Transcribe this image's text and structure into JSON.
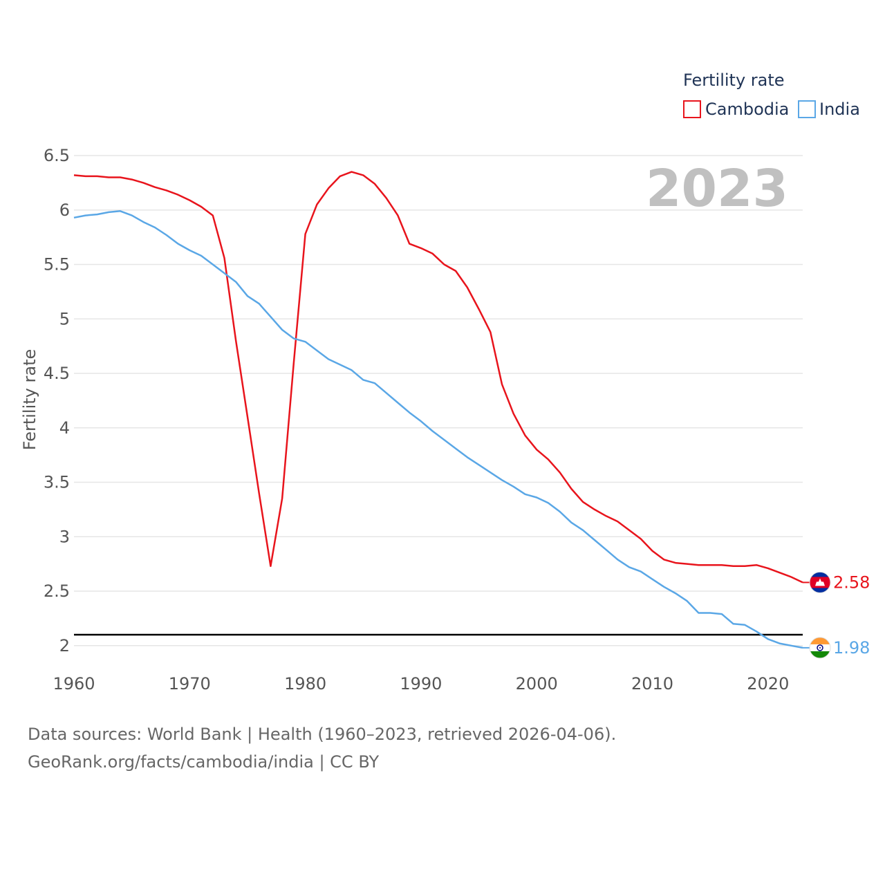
{
  "chart_data": {
    "type": "line",
    "title": "Fertility rate",
    "xlabel": "",
    "ylabel": "Fertility rate",
    "xlim": [
      1960,
      2023
    ],
    "ylim": [
      1.7,
      6.5
    ],
    "xticks": [
      1960,
      1970,
      1980,
      1990,
      2000,
      2010,
      2020
    ],
    "xtick_labels": [
      "1960",
      "1970",
      "1980",
      "1990",
      "2000",
      "2010",
      "2020"
    ],
    "yticks": [
      2,
      2.5,
      3,
      3.5,
      4,
      4.5,
      5,
      5.5,
      6,
      6.5
    ],
    "ytick_labels": [
      "2",
      "2.5",
      "3",
      "3.5",
      "4",
      "4.5",
      "5",
      "5.5",
      "6",
      "6.5"
    ],
    "year_label": "2023",
    "reference_line": {
      "y": 2.1,
      "color": "#000000"
    },
    "x": [
      1960,
      1961,
      1962,
      1963,
      1964,
      1965,
      1966,
      1967,
      1968,
      1969,
      1970,
      1971,
      1972,
      1973,
      1974,
      1975,
      1976,
      1977,
      1978,
      1979,
      1980,
      1981,
      1982,
      1983,
      1984,
      1985,
      1986,
      1987,
      1988,
      1989,
      1990,
      1991,
      1992,
      1993,
      1994,
      1995,
      1996,
      1997,
      1998,
      1999,
      2000,
      2001,
      2002,
      2003,
      2004,
      2005,
      2006,
      2007,
      2008,
      2009,
      2010,
      2011,
      2012,
      2013,
      2014,
      2015,
      2016,
      2017,
      2018,
      2019,
      2020,
      2021,
      2022,
      2023
    ],
    "series": [
      {
        "name": "Cambodia",
        "color": "#e8141c",
        "end_label": "2.58",
        "values": [
          6.32,
          6.31,
          6.31,
          6.3,
          6.3,
          6.28,
          6.25,
          6.21,
          6.18,
          6.14,
          6.09,
          6.03,
          5.95,
          5.56,
          4.8,
          4.1,
          3.4,
          2.73,
          3.35,
          4.6,
          5.78,
          6.05,
          6.2,
          6.31,
          6.35,
          6.32,
          6.24,
          6.11,
          5.95,
          5.69,
          5.65,
          5.6,
          5.5,
          5.44,
          5.29,
          5.09,
          4.88,
          4.4,
          4.13,
          3.93,
          3.8,
          3.71,
          3.59,
          3.44,
          3.32,
          3.25,
          3.19,
          3.14,
          3.06,
          2.98,
          2.87,
          2.79,
          2.76,
          2.75,
          2.74,
          2.74,
          2.74,
          2.73,
          2.73,
          2.74,
          2.71,
          2.67,
          2.63,
          2.58
        ]
      },
      {
        "name": "India",
        "color": "#5aa7e6",
        "end_label": "1.98",
        "values": [
          5.93,
          5.95,
          5.96,
          5.98,
          5.99,
          5.95,
          5.89,
          5.84,
          5.77,
          5.69,
          5.63,
          5.58,
          5.5,
          5.42,
          5.34,
          5.21,
          5.14,
          5.02,
          4.9,
          4.82,
          4.79,
          4.71,
          4.63,
          4.58,
          4.53,
          4.44,
          4.41,
          4.32,
          4.23,
          4.14,
          4.06,
          3.97,
          3.89,
          3.81,
          3.73,
          3.66,
          3.59,
          3.52,
          3.46,
          3.39,
          3.36,
          3.31,
          3.23,
          3.13,
          3.06,
          2.97,
          2.88,
          2.79,
          2.72,
          2.68,
          2.61,
          2.54,
          2.48,
          2.41,
          2.3,
          2.3,
          2.29,
          2.2,
          2.19,
          2.13,
          2.06,
          2.02,
          2.0,
          1.98
        ]
      }
    ]
  },
  "footer": {
    "line1": "Data sources: World Bank | Health (1960–2023, retrieved 2026-04-06).",
    "line2": "GeoRank.org/facts/cambodia/india | CC BY"
  }
}
